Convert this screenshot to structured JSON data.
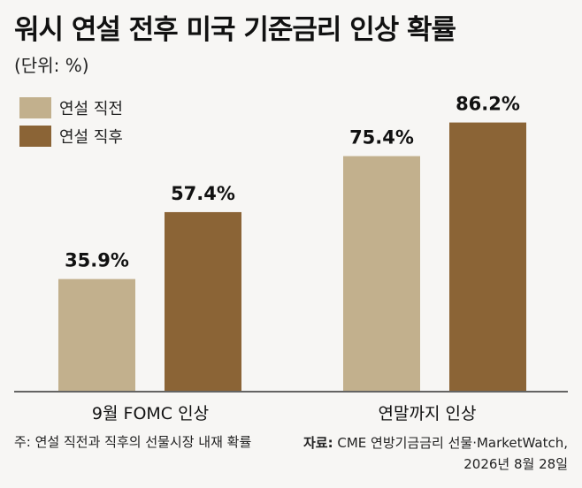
{
  "title": "워시 연설 전후 미국 기준금리 인상 확률",
  "unit_note": "(단위: %)",
  "colors": {
    "before": "#c2b08d",
    "after": "#8b6436"
  },
  "footnote": "주: 연설 직전과 직후의 선물시장 내재 확률",
  "source": {
    "label": "자료:",
    "text": "CME 연방기금금리 선물·MarketWatch,",
    "date": "2026년 8월 28일"
  },
  "chart_data": {
    "type": "bar",
    "categories": [
      "9월 FOMC 인상",
      "연말까지 인상"
    ],
    "series": [
      {
        "name": "연설 직전",
        "values": [
          35.9,
          75.4
        ]
      },
      {
        "name": "연설 직후",
        "values": [
          57.4,
          86.2
        ]
      }
    ],
    "value_labels": [
      [
        "35.9%",
        "75.4%"
      ],
      [
        "57.4%",
        "86.2%"
      ]
    ],
    "ylim": [
      0,
      100
    ],
    "legend_position": "top-left",
    "grid": false
  }
}
